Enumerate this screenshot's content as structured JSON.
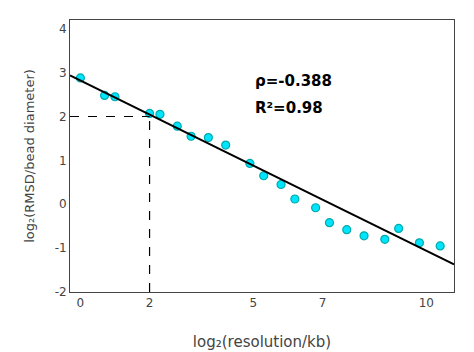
{
  "chart_data": {
    "type": "scatter",
    "xlabel": "log₂(resolution/kb)",
    "ylabel": "log₂(RMSD/bead diameter)",
    "xlim": [
      -0.3,
      10.8
    ],
    "ylim": [
      -2.0,
      4.2
    ],
    "xticks": [
      0,
      2,
      5,
      7,
      10
    ],
    "yticks": [
      -2,
      -1,
      0,
      1,
      2,
      3,
      4
    ],
    "grid": false,
    "series": [
      {
        "type": "scatter",
        "marker": "circle",
        "color": "#00E5FF",
        "x": [
          0.0,
          0.7,
          1.0,
          2.0,
          2.3,
          2.8,
          3.2,
          3.7,
          4.2,
          4.9,
          5.3,
          5.8,
          6.2,
          6.8,
          7.2,
          7.7,
          8.2,
          8.8,
          9.2,
          9.8,
          10.4
        ],
        "values": [
          2.88,
          2.48,
          2.45,
          2.07,
          2.05,
          1.78,
          1.55,
          1.52,
          1.35,
          0.93,
          0.65,
          0.45,
          0.12,
          -0.08,
          -0.42,
          -0.58,
          -0.72,
          -0.8,
          -0.55,
          -0.88,
          -0.95
        ]
      },
      {
        "type": "line",
        "line_style": "solid",
        "color": "black",
        "x": [
          -0.3,
          10.8
        ],
        "values": [
          2.9364,
          -1.3704
        ]
      },
      {
        "type": "line",
        "line_style": "dashed",
        "color": "black",
        "x": [
          -0.3,
          2.0
        ],
        "values": [
          2.0,
          2.0
        ]
      },
      {
        "type": "line",
        "line_style": "dashed",
        "color": "black",
        "x": [
          2.0,
          2.0
        ],
        "values": [
          -2.0,
          2.0
        ]
      }
    ],
    "annotations": [
      {
        "text": "ρ=-0.388",
        "x": 5.0,
        "y": 2.55
      },
      {
        "text": "R²=0.98",
        "x": 5.0,
        "y": 1.95
      }
    ]
  }
}
